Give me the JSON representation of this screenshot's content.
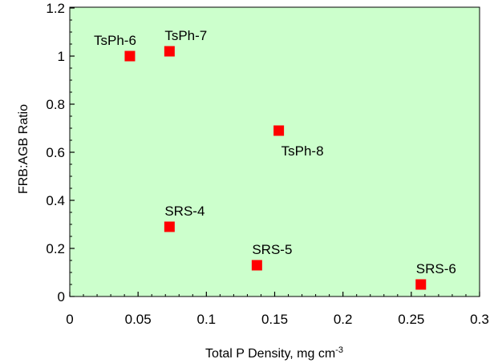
{
  "chart_data": {
    "type": "scatter",
    "title": "",
    "xlabel": "Total P Density, mg cm",
    "xlabel_superscript": "-3",
    "ylabel": "FRB:AGB Ratio",
    "xlim": [
      0,
      0.3
    ],
    "ylim": [
      0,
      1.25
    ],
    "x_ticks": [
      "0",
      "0.05",
      "0.1",
      "0.15",
      "0.2",
      "0.25",
      "0.3"
    ],
    "y_ticks": [
      "0",
      "0.2",
      "0.4",
      "0.6",
      "0.8",
      "1",
      "1.2"
    ],
    "grid": false,
    "plot_background": "#ccffcc",
    "marker_color": "#ff0000",
    "marker_shape": "square",
    "points": [
      {
        "label": "TsPh-6",
        "x": 0.044,
        "y": 1.0,
        "label_position": "above-left"
      },
      {
        "label": "TsPh-7",
        "x": 0.073,
        "y": 1.02,
        "label_position": "above-right"
      },
      {
        "label": "TsPh-8",
        "x": 0.153,
        "y": 0.69,
        "label_position": "below-right"
      },
      {
        "label": "SRS-4",
        "x": 0.073,
        "y": 0.29,
        "label_position": "above-right"
      },
      {
        "label": "SRS-5",
        "x": 0.137,
        "y": 0.13,
        "label_position": "above-right"
      },
      {
        "label": "SRS-6",
        "x": 0.257,
        "y": 0.05,
        "label_position": "above-right"
      }
    ]
  }
}
